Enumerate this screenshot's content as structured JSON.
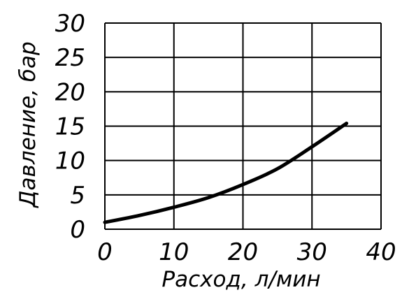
{
  "chart_data": {
    "type": "line",
    "title": "",
    "xlabel": "Расход, л/мин",
    "ylabel": "Давление, бар",
    "xlim": [
      0,
      40
    ],
    "ylim": [
      0,
      30
    ],
    "x_ticks": [
      "0",
      "10",
      "20",
      "30",
      "40"
    ],
    "y_ticks": [
      "0",
      "5",
      "10",
      "15",
      "20",
      "25",
      "30"
    ],
    "grid": true,
    "series": [
      {
        "x": [
          0,
          5,
          10,
          15,
          20,
          25,
          30,
          35
        ],
        "y": [
          1,
          2,
          3.2,
          4.6,
          6.5,
          8.8,
          12,
          15.4
        ]
      }
    ],
    "colors": {
      "line": "#000000",
      "grid": "#000000",
      "background": "#ffffff"
    }
  }
}
